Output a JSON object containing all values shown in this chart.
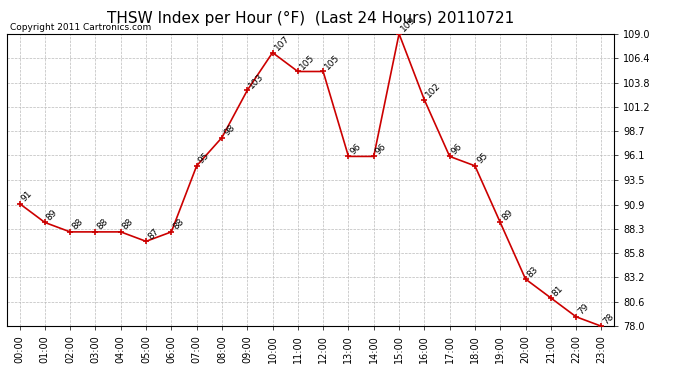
{
  "title": "THSW Index per Hour (°F)  (Last 24 Hours) 20110721",
  "copyright": "Copyright 2011 Cartronics.com",
  "hours": [
    "00:00",
    "01:00",
    "02:00",
    "03:00",
    "04:00",
    "05:00",
    "06:00",
    "07:00",
    "08:00",
    "09:00",
    "10:00",
    "11:00",
    "12:00",
    "13:00",
    "14:00",
    "15:00",
    "16:00",
    "17:00",
    "18:00",
    "19:00",
    "20:00",
    "21:00",
    "22:00",
    "23:00"
  ],
  "values": [
    91,
    89,
    88,
    88,
    88,
    87,
    88,
    95,
    98,
    103,
    107,
    105,
    105,
    96,
    96,
    109,
    102,
    96,
    95,
    89,
    83,
    81,
    79,
    78
  ],
  "line_color": "#cc0000",
  "marker_color": "#cc0000",
  "bg_color": "#ffffff",
  "grid_color": "#bbbbbb",
  "ylim_min": 78.0,
  "ylim_max": 109.0,
  "yticks": [
    78.0,
    80.6,
    83.2,
    85.8,
    88.3,
    90.9,
    93.5,
    96.1,
    98.7,
    101.2,
    103.8,
    106.4,
    109.0
  ],
  "title_fontsize": 11,
  "label_fontsize": 7,
  "annotation_fontsize": 6.5,
  "copyright_fontsize": 6.5
}
